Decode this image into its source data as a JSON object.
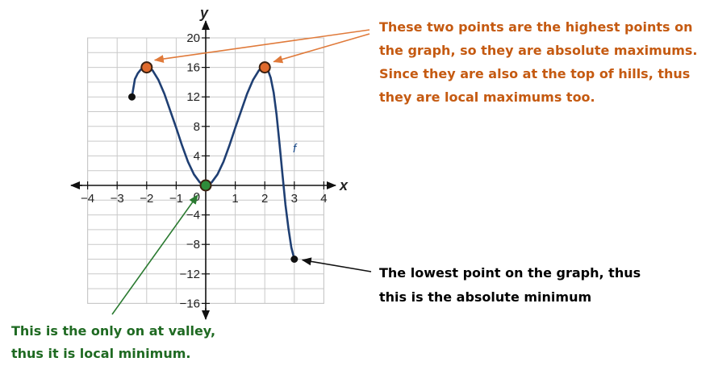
{
  "chart_data": {
    "type": "line",
    "xlabel": "x",
    "ylabel": "y",
    "xlim": [
      -4,
      4
    ],
    "ylim": [
      -16,
      20
    ],
    "x_ticks": [
      -4,
      -3,
      -2,
      -1,
      1,
      2,
      3,
      4
    ],
    "y_ticks": [
      -16,
      -12,
      -8,
      -4,
      4,
      8,
      12,
      16,
      20
    ],
    "x_tick_labels": [
      "−4",
      "−3",
      "−2",
      "−1",
      "1",
      "2",
      "3",
      "4"
    ],
    "y_tick_labels": [
      "−16",
      "−12",
      "−8",
      "−4",
      "4",
      "8",
      "12",
      "16",
      "20"
    ],
    "origin_label": "0",
    "grid": true,
    "series": [
      {
        "name": "f",
        "color": "#1f3f73",
        "x": [
          -2.5,
          -2.4,
          -2.3,
          -2.2,
          -2.1,
          -2.0,
          -1.9,
          -1.8,
          -1.6,
          -1.4,
          -1.2,
          -1.0,
          -0.8,
          -0.6,
          -0.4,
          -0.2,
          0.0,
          0.2,
          0.4,
          0.6,
          0.8,
          1.0,
          1.2,
          1.4,
          1.6,
          1.8,
          1.9,
          2.0,
          2.1,
          2.2,
          2.3,
          2.4,
          2.5,
          2.6,
          2.7,
          2.8,
          2.9,
          3.0
        ],
        "y": [
          12.0,
          14.4,
          15.2,
          15.7,
          15.9,
          16.0,
          15.9,
          15.6,
          14.3,
          12.4,
          10.1,
          7.8,
          5.4,
          3.2,
          1.5,
          0.4,
          0.0,
          0.4,
          1.5,
          3.2,
          5.4,
          7.8,
          10.1,
          12.4,
          14.3,
          15.6,
          15.9,
          16.0,
          15.7,
          14.6,
          12.6,
          9.6,
          5.6,
          1.4,
          -2.6,
          -5.8,
          -8.4,
          -10.0
        ]
      }
    ],
    "marked_points": [
      {
        "x": -2.5,
        "y": 12,
        "color": "#111111",
        "kind": "endpoint"
      },
      {
        "x": -2,
        "y": 16,
        "color": "#e06a2c",
        "kind": "absolute-maximum"
      },
      {
        "x": 2,
        "y": 16,
        "color": "#e06a2c",
        "kind": "absolute-maximum"
      },
      {
        "x": 0,
        "y": 0,
        "color": "#2e8b3a",
        "kind": "local-minimum"
      },
      {
        "x": 3,
        "y": -10,
        "color": "#111111",
        "kind": "absolute-minimum"
      }
    ],
    "annotations": {
      "max_lines": [
        "These two points are the highest points on",
        "the graph, so they are absolute maximums.",
        "Since they are also at the top of hills, thus",
        "they are local maximums too."
      ],
      "min_lines": [
        "The lowest point on the graph, thus",
        "this is the absolute minimum"
      ],
      "local_min_lines": [
        "This is the only on at valley,",
        "thus it is local minimum."
      ],
      "colors": {
        "max": "#c55a11",
        "min": "#000000",
        "local_min": "#1f6a22"
      }
    }
  }
}
